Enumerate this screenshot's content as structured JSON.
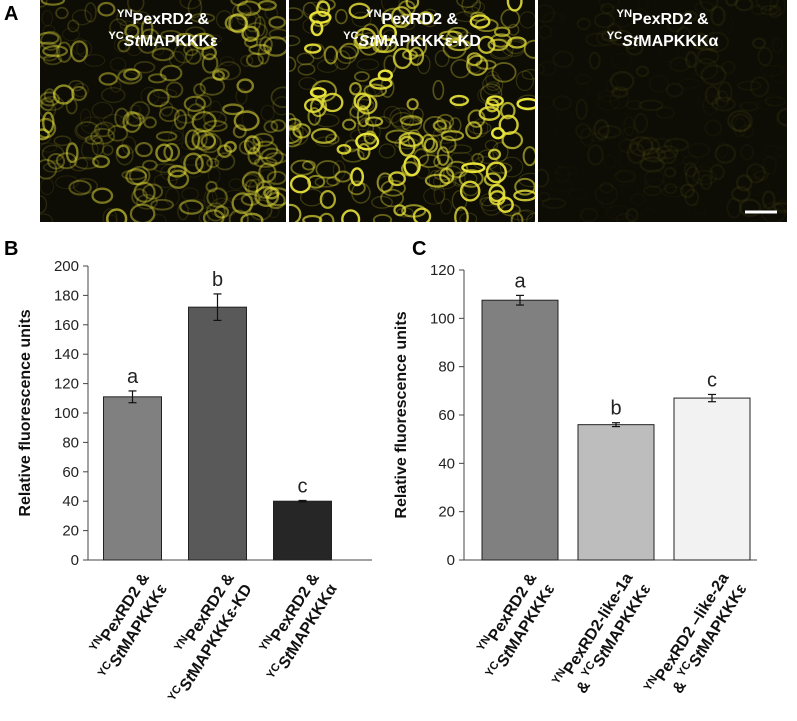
{
  "panel_a": {
    "label": "A",
    "images": [
      {
        "lines": [
          [
            {
              "t": "YN",
              "f": "sup"
            },
            "PexRD2 &"
          ],
          [
            {
              "t": "YC",
              "f": "sup"
            },
            {
              "t": "St",
              "f": "italic"
            },
            "MAPKKKε"
          ]
        ]
      },
      {
        "lines": [
          [
            {
              "t": "YN",
              "f": "sup"
            },
            "PexRD2 &"
          ],
          [
            {
              "t": "YC",
              "f": "sup"
            },
            {
              "t": "St",
              "f": "italic"
            },
            "MAPKKKε-KD"
          ]
        ]
      },
      {
        "lines": [
          [
            {
              "t": "YN",
              "f": "sup"
            },
            "PexRD2 &"
          ],
          [
            {
              "t": "YC",
              "f": "sup"
            },
            {
              "t": "St",
              "f": "italic"
            },
            "MAPKKKα"
          ]
        ]
      }
    ]
  },
  "chart_data": [
    {
      "type": "bar",
      "panel": "B",
      "ylabel": "Relative fluorescence units",
      "categories": [
        {
          "lines": [
            [
              {
                "t": "YN",
                "f": "sup"
              },
              "PexRD2 &"
            ],
            [
              {
                "t": "YC",
                "f": "sup"
              },
              {
                "t": "St",
                "f": "italic"
              },
              "MAPKKKε"
            ]
          ]
        },
        {
          "lines": [
            [
              {
                "t": "YN",
                "f": "sup"
              },
              "PexRD2 &"
            ],
            [
              {
                "t": "YC",
                "f": "sup"
              },
              {
                "t": "St",
                "f": "italic"
              },
              "MAPKKKε-KD"
            ]
          ]
        },
        {
          "lines": [
            [
              {
                "t": "YN",
                "f": "sup"
              },
              "PexRD2 &"
            ],
            [
              {
                "t": "YC",
                "f": "sup"
              },
              {
                "t": "St",
                "f": "italic"
              },
              "MAPKKKα"
            ]
          ]
        }
      ],
      "values": [
        111,
        172,
        40
      ],
      "errors": [
        4,
        9,
        0.5
      ],
      "annotations": [
        "a",
        "b",
        "c"
      ],
      "colors": [
        "#808080",
        "#595959",
        "#262626"
      ],
      "ylim": [
        0,
        200
      ],
      "yticks": [
        0,
        20,
        40,
        60,
        80,
        100,
        120,
        140,
        160,
        180,
        200
      ]
    },
    {
      "type": "bar",
      "panel": "C",
      "ylabel": "Relative fluorescence units",
      "categories": [
        {
          "lines": [
            [
              {
                "t": "YN",
                "f": "sup"
              },
              "PexRD2 &"
            ],
            [
              {
                "t": "YC",
                "f": "sup"
              },
              {
                "t": "St",
                "f": "italic"
              },
              "MAPKKKε"
            ]
          ]
        },
        {
          "lines": [
            [
              {
                "t": "YN",
                "f": "sup"
              },
              "PexRD2-like-1a"
            ],
            [
              "& ",
              {
                "t": "YC",
                "f": "sup"
              },
              {
                "t": "St",
                "f": "italic"
              },
              "MAPKKKε"
            ]
          ]
        },
        {
          "lines": [
            [
              {
                "t": "YN",
                "f": "sup"
              },
              "PexRD2 –like-2a"
            ],
            [
              "& ",
              {
                "t": "YC",
                "f": "sup"
              },
              {
                "t": "St",
                "f": "italic"
              },
              "MAPKKKε"
            ]
          ]
        }
      ],
      "values": [
        107.5,
        56,
        67
      ],
      "errors": [
        2,
        0.8,
        1.5
      ],
      "annotations": [
        "a",
        "b",
        "c"
      ],
      "colors": [
        "#808080",
        "#bdbdbd",
        "#f2f2f2"
      ],
      "ylim": [
        0,
        120
      ],
      "yticks": [
        0,
        20,
        40,
        60,
        80,
        100,
        120
      ]
    }
  ]
}
